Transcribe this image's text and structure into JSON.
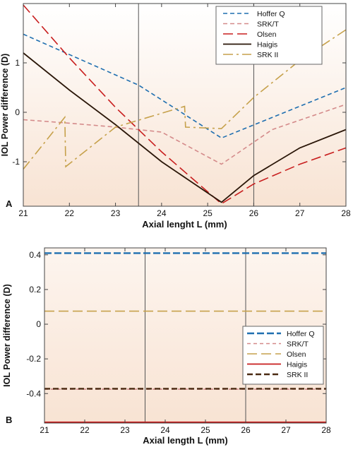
{
  "chart_data": [
    {
      "type": "line",
      "panel_label": "A",
      "xlabel": "Axial lenght L (mm)",
      "ylabel": "IOL Power difference (D)",
      "xlim": [
        21,
        28
      ],
      "ylim": [
        -1.9,
        2.2
      ],
      "xticks": [
        21,
        22,
        23,
        24,
        25,
        26,
        27,
        28
      ],
      "yticks": [
        -1,
        0,
        1
      ],
      "vlines": [
        21,
        23.5,
        26
      ],
      "grid": false,
      "legend_position": "top-right",
      "series": [
        {
          "name": "Hoffer Q",
          "color": "#1f6fb0",
          "dash": "6,4",
          "width": 1.6,
          "x": [
            21,
            23.5,
            25.3,
            28
          ],
          "y": [
            1.58,
            0.55,
            -0.52,
            0.5
          ]
        },
        {
          "name": "SRK/T",
          "color": "#d48a8a",
          "dash": "6,4",
          "width": 1.6,
          "x": [
            21,
            22,
            23,
            24,
            25.3,
            26.4,
            28
          ],
          "y": [
            -0.15,
            -0.22,
            -0.3,
            -0.4,
            -1.05,
            -0.35,
            0.16
          ]
        },
        {
          "name": "Olsen",
          "color": "#c81e1e",
          "dash": "14,6",
          "width": 1.6,
          "x": [
            21,
            22,
            23,
            24,
            25.3,
            26,
            27,
            28
          ],
          "y": [
            2.17,
            1.1,
            0.1,
            -0.8,
            -1.85,
            -1.45,
            -1.05,
            -0.72
          ]
        },
        {
          "name": "Haigis",
          "color": "#2a1608",
          "dash": "",
          "width": 1.8,
          "x": [
            21,
            22,
            23,
            24,
            25.3,
            26,
            27,
            28
          ],
          "y": [
            1.2,
            0.45,
            -0.25,
            -1.0,
            -1.82,
            -1.28,
            -0.72,
            -0.35
          ]
        },
        {
          "name": "SRK II",
          "color": "#c6a14b",
          "dash": "14,5,3,5",
          "width": 1.6,
          "x": [
            21,
            21.9,
            21.92,
            23,
            24.5,
            24.52,
            25.3,
            26,
            27,
            28
          ],
          "y": [
            -1.15,
            -0.1,
            -1.1,
            -0.3,
            0.12,
            -0.3,
            -0.33,
            0.3,
            1.05,
            1.67
          ]
        }
      ]
    },
    {
      "type": "line",
      "panel_label": "B",
      "xlabel": "Axial length L (mm)",
      "ylabel": "IOL Power difference (D)",
      "xlim": [
        21,
        28
      ],
      "ylim": [
        -0.57,
        0.44
      ],
      "xticks": [
        21,
        22,
        23,
        24,
        25,
        26,
        27,
        28
      ],
      "yticks": [
        -0.4,
        -0.2,
        0,
        0.2,
        0.4
      ],
      "vlines": [
        23.5,
        26
      ],
      "grid": false,
      "legend_position": "center-right",
      "series": [
        {
          "name": "Hoffer Q",
          "color": "#1f6fb0",
          "dash": "10,4",
          "width": 2.4,
          "x": [
            21,
            28
          ],
          "y": [
            0.41,
            0.41
          ]
        },
        {
          "name": "SRK/T",
          "color": "#d48a8a",
          "dash": "5,4",
          "width": 1.6,
          "x": [
            21,
            28
          ],
          "y": [
            -0.375,
            -0.375
          ]
        },
        {
          "name": "Olsen",
          "color": "#c6a14b",
          "dash": "14,6",
          "width": 1.6,
          "x": [
            21,
            28
          ],
          "y": [
            0.075,
            0.075
          ]
        },
        {
          "name": "Haigis",
          "color": "#c81e1e",
          "dash": "",
          "width": 1.8,
          "x": [
            21,
            28
          ],
          "y": [
            -0.565,
            -0.565
          ]
        },
        {
          "name": "SRK II",
          "color": "#4a2a12",
          "dash": "8,4",
          "width": 2.4,
          "x": [
            21,
            28
          ],
          "y": [
            -0.372,
            -0.372
          ]
        }
      ]
    }
  ]
}
